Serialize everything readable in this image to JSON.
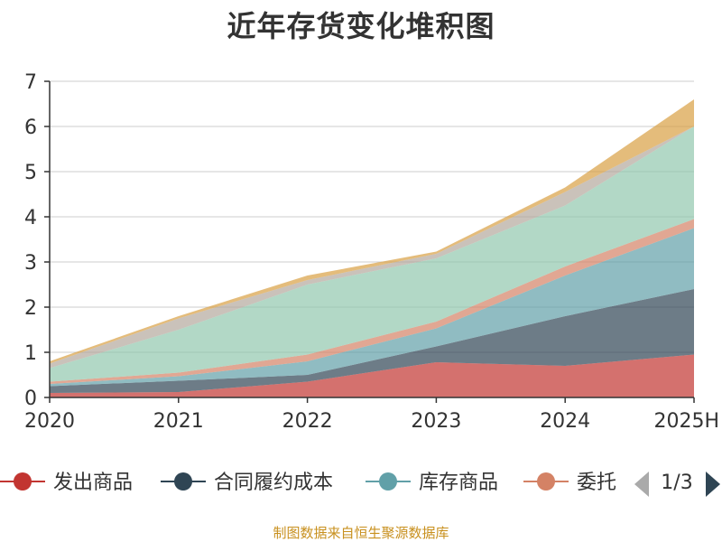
{
  "chart_data": {
    "type": "area",
    "title": "近年存货变化堆积图",
    "source_note": "制图数据来自恒生聚源数据库",
    "x": [
      "2020",
      "2021",
      "2022",
      "2023",
      "2024",
      "2025H"
    ],
    "ylim": [
      0,
      7
    ],
    "yticks": [
      0,
      1,
      2,
      3,
      4,
      5,
      6,
      7
    ],
    "grid": true,
    "stacked": true,
    "series": [
      {
        "name": "发出商品",
        "color": "#c23531",
        "values": [
          0.1,
          0.12,
          0.35,
          0.78,
          0.7,
          0.95
        ]
      },
      {
        "name": "合同履约成本",
        "color": "#2f4554",
        "values": [
          0.15,
          0.25,
          0.15,
          0.35,
          1.1,
          1.45
        ]
      },
      {
        "name": "库存商品",
        "color": "#61a0a8",
        "values": [
          0.05,
          0.1,
          0.3,
          0.4,
          0.9,
          1.35
        ]
      },
      {
        "name": "委托",
        "color": "#d48265",
        "values": [
          0.05,
          0.08,
          0.15,
          0.15,
          0.2,
          0.2
        ]
      },
      {
        "color": "#91c7ae",
        "values": [
          0.3,
          0.95,
          1.55,
          1.4,
          1.35,
          2.05
        ]
      },
      {
        "color": "#b3a89c",
        "values": [
          0.1,
          0.25,
          0.1,
          0.1,
          0.3,
          0.0
        ]
      },
      {
        "color": "#d9a043",
        "values": [
          0.05,
          0.05,
          0.1,
          0.05,
          0.1,
          0.6
        ]
      }
    ],
    "legend": {
      "position": "bottom",
      "items": [
        {
          "label": "发出商品",
          "color": "#c23531"
        },
        {
          "label": "合同履约成本",
          "color": "#2f4554"
        },
        {
          "label": "库存商品",
          "color": "#61a0a8"
        },
        {
          "label": "委托",
          "color": "#d48265"
        }
      ],
      "page": "1/3"
    }
  }
}
